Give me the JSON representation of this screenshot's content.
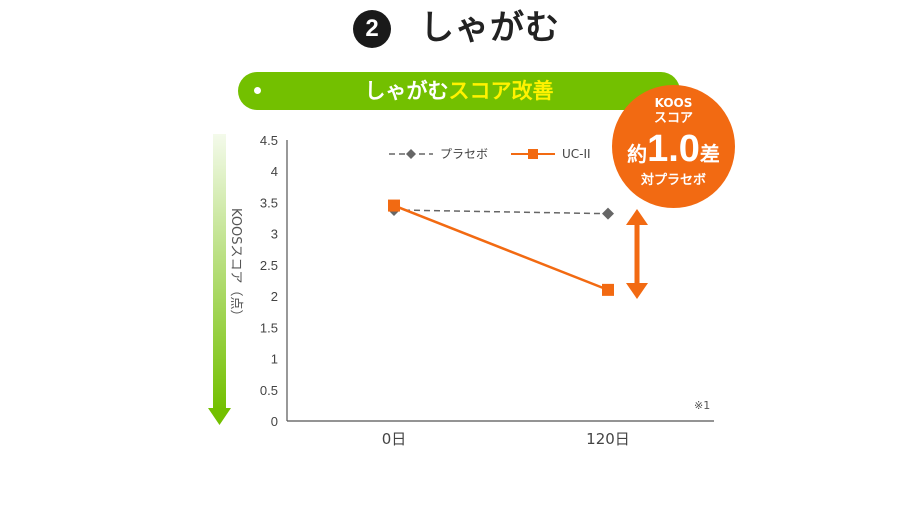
{
  "header": {
    "number": "2",
    "title": "しゃがむ"
  },
  "banner": {
    "text_white": "しゃがむ",
    "text_yellow": "スコア改善"
  },
  "badge": {
    "line1": "KOOS",
    "line2": "スコア",
    "prefix": "約",
    "value": "1.0",
    "suffix": "差",
    "line4": "対プラセボ"
  },
  "note": "※1",
  "chart_data": {
    "type": "line",
    "categories": [
      "0日",
      "120日"
    ],
    "ylabel": "KOOSスコア（点）",
    "ylim": [
      0,
      4.5
    ],
    "yticks": [
      "0",
      "0.5",
      "1",
      "1.5",
      "2",
      "2.5",
      "3",
      "3.5",
      "4",
      "4.5"
    ],
    "legend_position": "top",
    "series": [
      {
        "name": "プラセボ",
        "values": [
          3.38,
          3.32
        ],
        "color": "#666666",
        "style": "dashed",
        "marker": "diamond"
      },
      {
        "name": "UC-II",
        "values": [
          3.45,
          2.1
        ],
        "color": "#f26a12",
        "style": "solid",
        "marker": "square"
      }
    ],
    "arrow_color": "#f26a12",
    "axis_arrow_color": "#73c000"
  }
}
